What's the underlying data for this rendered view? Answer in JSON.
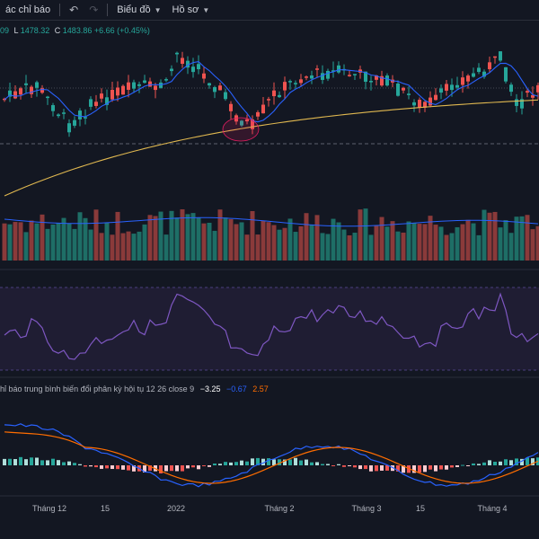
{
  "toolbar": {
    "indicators_label": "ác chỉ báo",
    "undo_icon": "undo-icon",
    "redo_icon": "redo-icon",
    "chart_label": "Biểu đồ",
    "profile_label": "Hồ sơ"
  },
  "legend": {
    "open_tail": "09",
    "low_key": "L",
    "low_value": "1478.32",
    "close_key": "C",
    "close_value": "1483.86",
    "change": "+6.66 (+0.45%)"
  },
  "macd": {
    "title": "hỉ báo trung bình biến đổi phân kỳ hội tụ",
    "params": "12 26 close 9",
    "hist": "−3.25",
    "macd": "−0.67",
    "signal": "2.57"
  },
  "time_axis": [
    "Tháng 12",
    "15",
    "2022",
    "Tháng 2",
    "Tháng 3",
    "15",
    "Tháng 4"
  ],
  "colors": {
    "up": "#26a69a",
    "down": "#ef5350",
    "ma_fast": "#2962ff",
    "ma_slow": "#e0b850",
    "rsi": "#7e57c2",
    "macd_line": "#2962ff",
    "signal_line": "#ff6d00"
  }
}
